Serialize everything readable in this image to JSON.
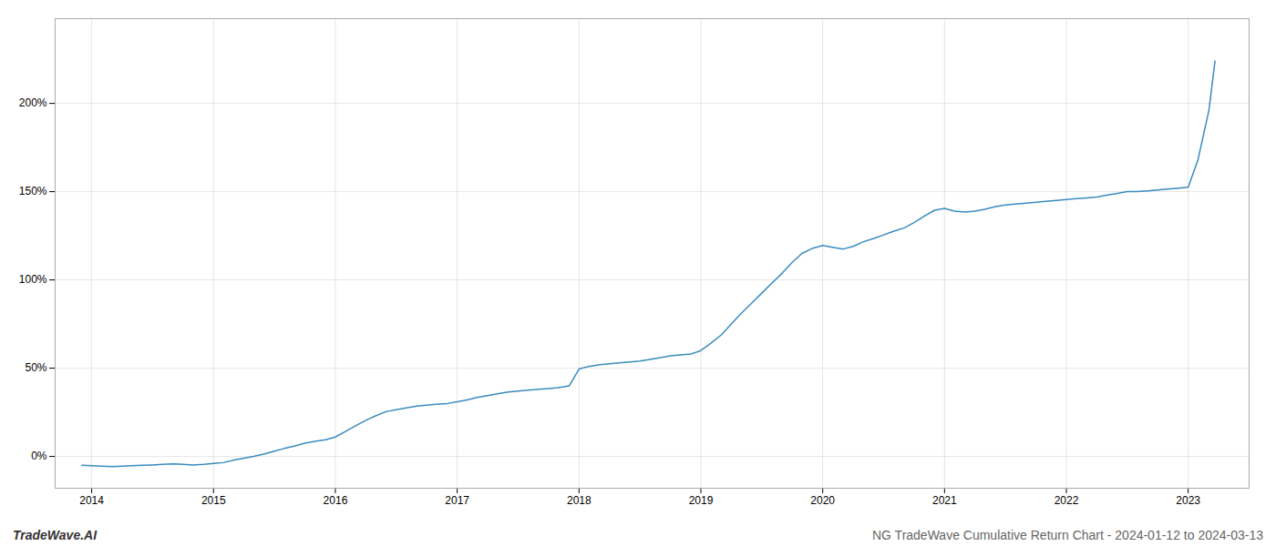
{
  "chart_data": {
    "type": "line",
    "title": "NG TradeWave Cumulative Return Chart - 2024-01-12 to 2024-03-13",
    "annotations": [
      "TradeWave.AI"
    ],
    "color": "#3a8bbf",
    "grid": true,
    "xlim": [
      2013.7,
      2023.5
    ],
    "xticks": [
      2014,
      2015,
      2016,
      2017,
      2018,
      2019,
      2020,
      2021,
      2022,
      2023
    ],
    "ylim": [
      -18,
      248
    ],
    "yticks": [
      {
        "value": 0,
        "label": "0%"
      },
      {
        "value": 50,
        "label": "50%"
      },
      {
        "value": 100,
        "label": "100%"
      },
      {
        "value": 150,
        "label": "150%"
      },
      {
        "value": 200,
        "label": "200%"
      }
    ],
    "x": [
      2013.92,
      2014.0,
      2014.08,
      2014.17,
      2014.25,
      2014.33,
      2014.42,
      2014.5,
      2014.58,
      2014.67,
      2014.75,
      2014.83,
      2014.92,
      2015.0,
      2015.08,
      2015.17,
      2015.25,
      2015.33,
      2015.42,
      2015.5,
      2015.58,
      2015.67,
      2015.75,
      2015.83,
      2015.92,
      2016.0,
      2016.08,
      2016.17,
      2016.25,
      2016.33,
      2016.42,
      2016.5,
      2016.58,
      2016.67,
      2016.75,
      2016.83,
      2016.92,
      2017.0,
      2017.08,
      2017.17,
      2017.25,
      2017.33,
      2017.42,
      2017.5,
      2017.58,
      2017.67,
      2017.75,
      2017.83,
      2017.92,
      2018.0,
      2018.08,
      2018.17,
      2018.25,
      2018.33,
      2018.42,
      2018.5,
      2018.58,
      2018.67,
      2018.75,
      2018.83,
      2018.92,
      2019.0,
      2019.08,
      2019.17,
      2019.25,
      2019.33,
      2019.42,
      2019.5,
      2019.58,
      2019.67,
      2019.75,
      2019.83,
      2019.92,
      2020.0,
      2020.08,
      2020.17,
      2020.25,
      2020.33,
      2020.42,
      2020.5,
      2020.58,
      2020.67,
      2020.75,
      2020.83,
      2020.92,
      2021.0,
      2021.08,
      2021.17,
      2021.25,
      2021.33,
      2021.42,
      2021.5,
      2021.58,
      2021.67,
      2021.75,
      2021.83,
      2021.92,
      2022.0,
      2022.08,
      2022.17,
      2022.25,
      2022.33,
      2022.42,
      2022.5,
      2022.58,
      2022.67,
      2022.75,
      2022.83,
      2022.92,
      2023.0,
      2023.08,
      2023.17,
      2023.22
    ],
    "values": [
      -5.0,
      -5.2,
      -5.5,
      -5.8,
      -5.5,
      -5.2,
      -5.0,
      -4.8,
      -4.5,
      -4.2,
      -4.5,
      -4.8,
      -4.5,
      -4.0,
      -3.5,
      -2.0,
      -1.0,
      0.0,
      1.5,
      3.0,
      4.5,
      6.0,
      7.5,
      8.5,
      9.5,
      11.0,
      14.0,
      17.5,
      20.5,
      23.0,
      25.5,
      26.5,
      27.5,
      28.5,
      29.0,
      29.5,
      30.0,
      31.0,
      32.0,
      33.5,
      34.5,
      35.5,
      36.5,
      37.0,
      37.5,
      38.0,
      38.5,
      39.0,
      40.0,
      49.5,
      51.0,
      52.0,
      52.5,
      53.0,
      53.5,
      54.0,
      55.0,
      56.0,
      57.0,
      57.5,
      58.0,
      60.0,
      64.0,
      69.0,
      75.0,
      81.0,
      87.0,
      92.5,
      98.0,
      104.0,
      110.0,
      115.0,
      118.0,
      119.5,
      118.5,
      117.5,
      119.0,
      121.5,
      123.5,
      125.5,
      127.5,
      129.5,
      132.5,
      136.0,
      139.5,
      140.5,
      139.0,
      138.5,
      139.0,
      140.0,
      141.5,
      142.5,
      143.0,
      143.5,
      144.0,
      144.5,
      145.0,
      145.5,
      146.0,
      146.5,
      147.0,
      148.0,
      149.0,
      150.0,
      150.0,
      150.5,
      151.0,
      151.5,
      152.0,
      152.5,
      168.0,
      196.0,
      224.0
    ]
  }
}
